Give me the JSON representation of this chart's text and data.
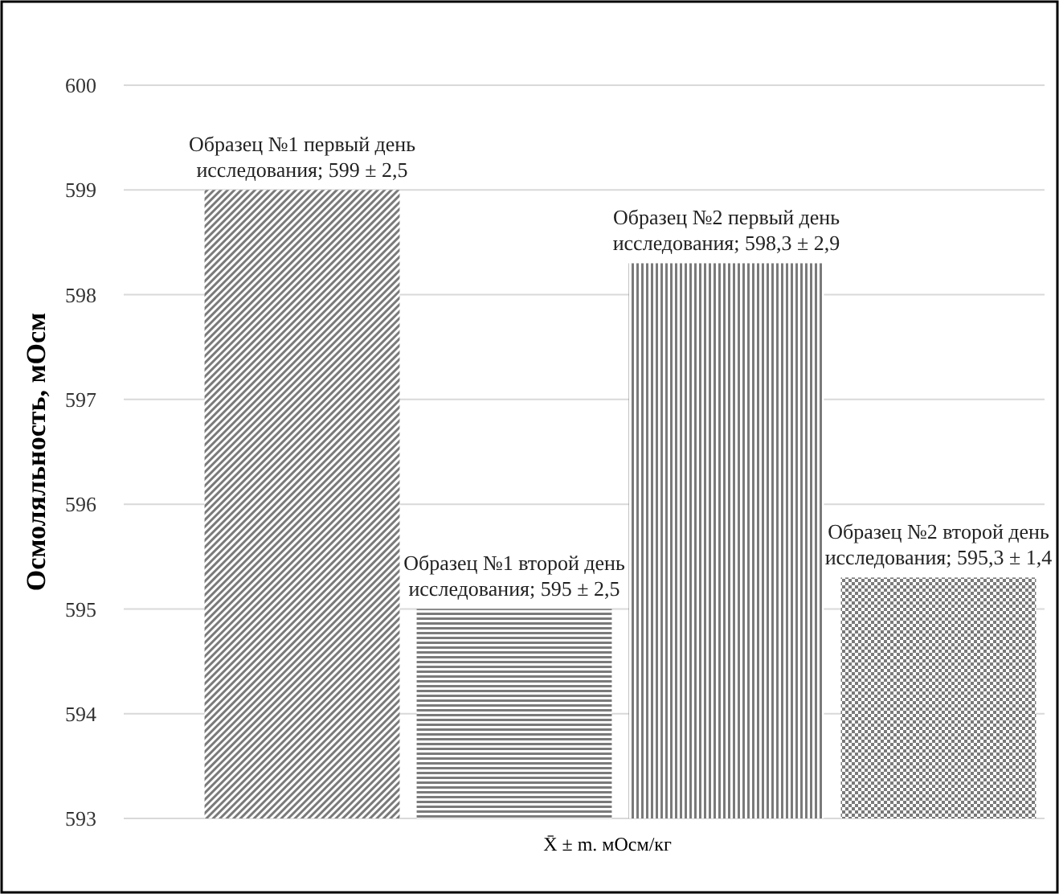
{
  "chart_data": {
    "type": "bar",
    "xlabel": "X̄ ± m. мОсм/кг",
    "ylabel": "Осмоляльность, мОсм",
    "categories": [
      null,
      null,
      null,
      null
    ],
    "values": [
      599,
      595,
      598.3,
      595.3
    ],
    "colors": [
      "#7a7a7a",
      "#7a7a7a",
      "#7a7a7a",
      "#7a7a7a"
    ],
    "value_labels": [
      "Образец №1 первый день исследования; 599 ± 2,5",
      "Образец №1 второй день исследования; 595 ± 2,5",
      "Образец №2 первый день исследования; 598,3 ± 2,9",
      "Образец №2 второй день исследования; 595,3 ± 1,4"
    ],
    "ylim": [
      593,
      600
    ],
    "yticks": [
      593,
      594,
      595,
      596,
      597,
      598,
      599,
      600
    ],
    "grid": "y"
  }
}
